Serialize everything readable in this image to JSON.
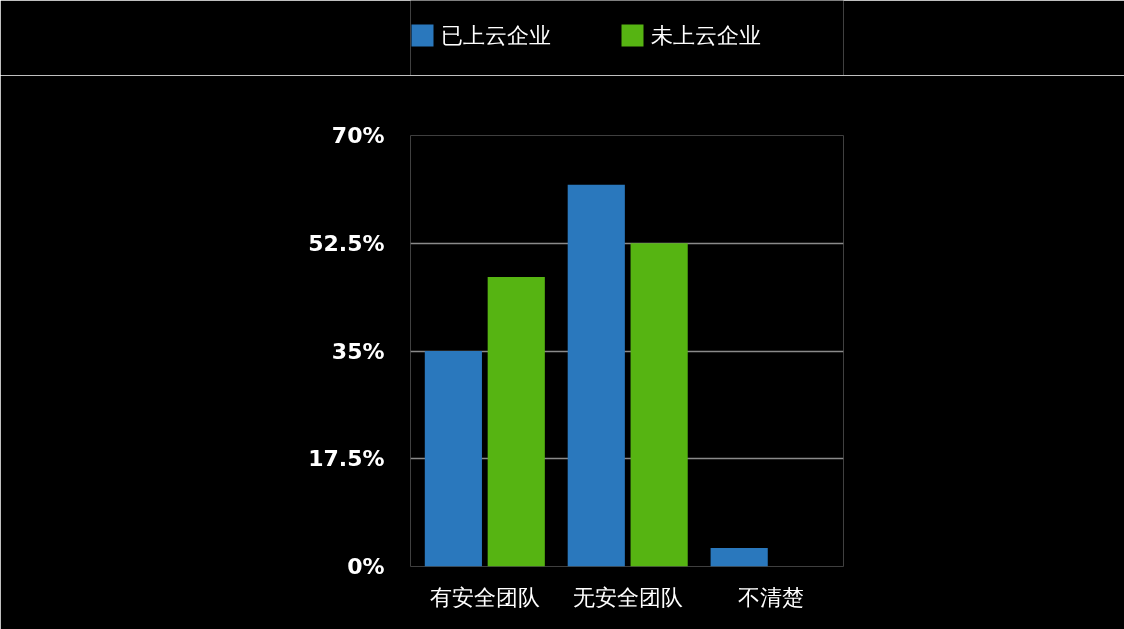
{
  "chart_data": {
    "type": "bar",
    "categories": [
      "有安全团队",
      "无安全团队",
      "不清楚"
    ],
    "series": [
      {
        "name": "已上云企业",
        "color": "#2a78bd",
        "values": [
          35,
          62,
          3
        ]
      },
      {
        "name": "未上云企业",
        "color": "#56b412",
        "values": [
          47,
          52.5,
          null
        ]
      }
    ],
    "ylim": [
      0,
      70
    ],
    "yticks": [
      {
        "value": 0,
        "label": "0%"
      },
      {
        "value": 17.5,
        "label": "17.5%"
      },
      {
        "value": 35,
        "label": "35%"
      },
      {
        "value": 52.5,
        "label": "52.5%"
      },
      {
        "value": 70,
        "label": "70%"
      }
    ],
    "grid": "y",
    "legend": "top"
  }
}
